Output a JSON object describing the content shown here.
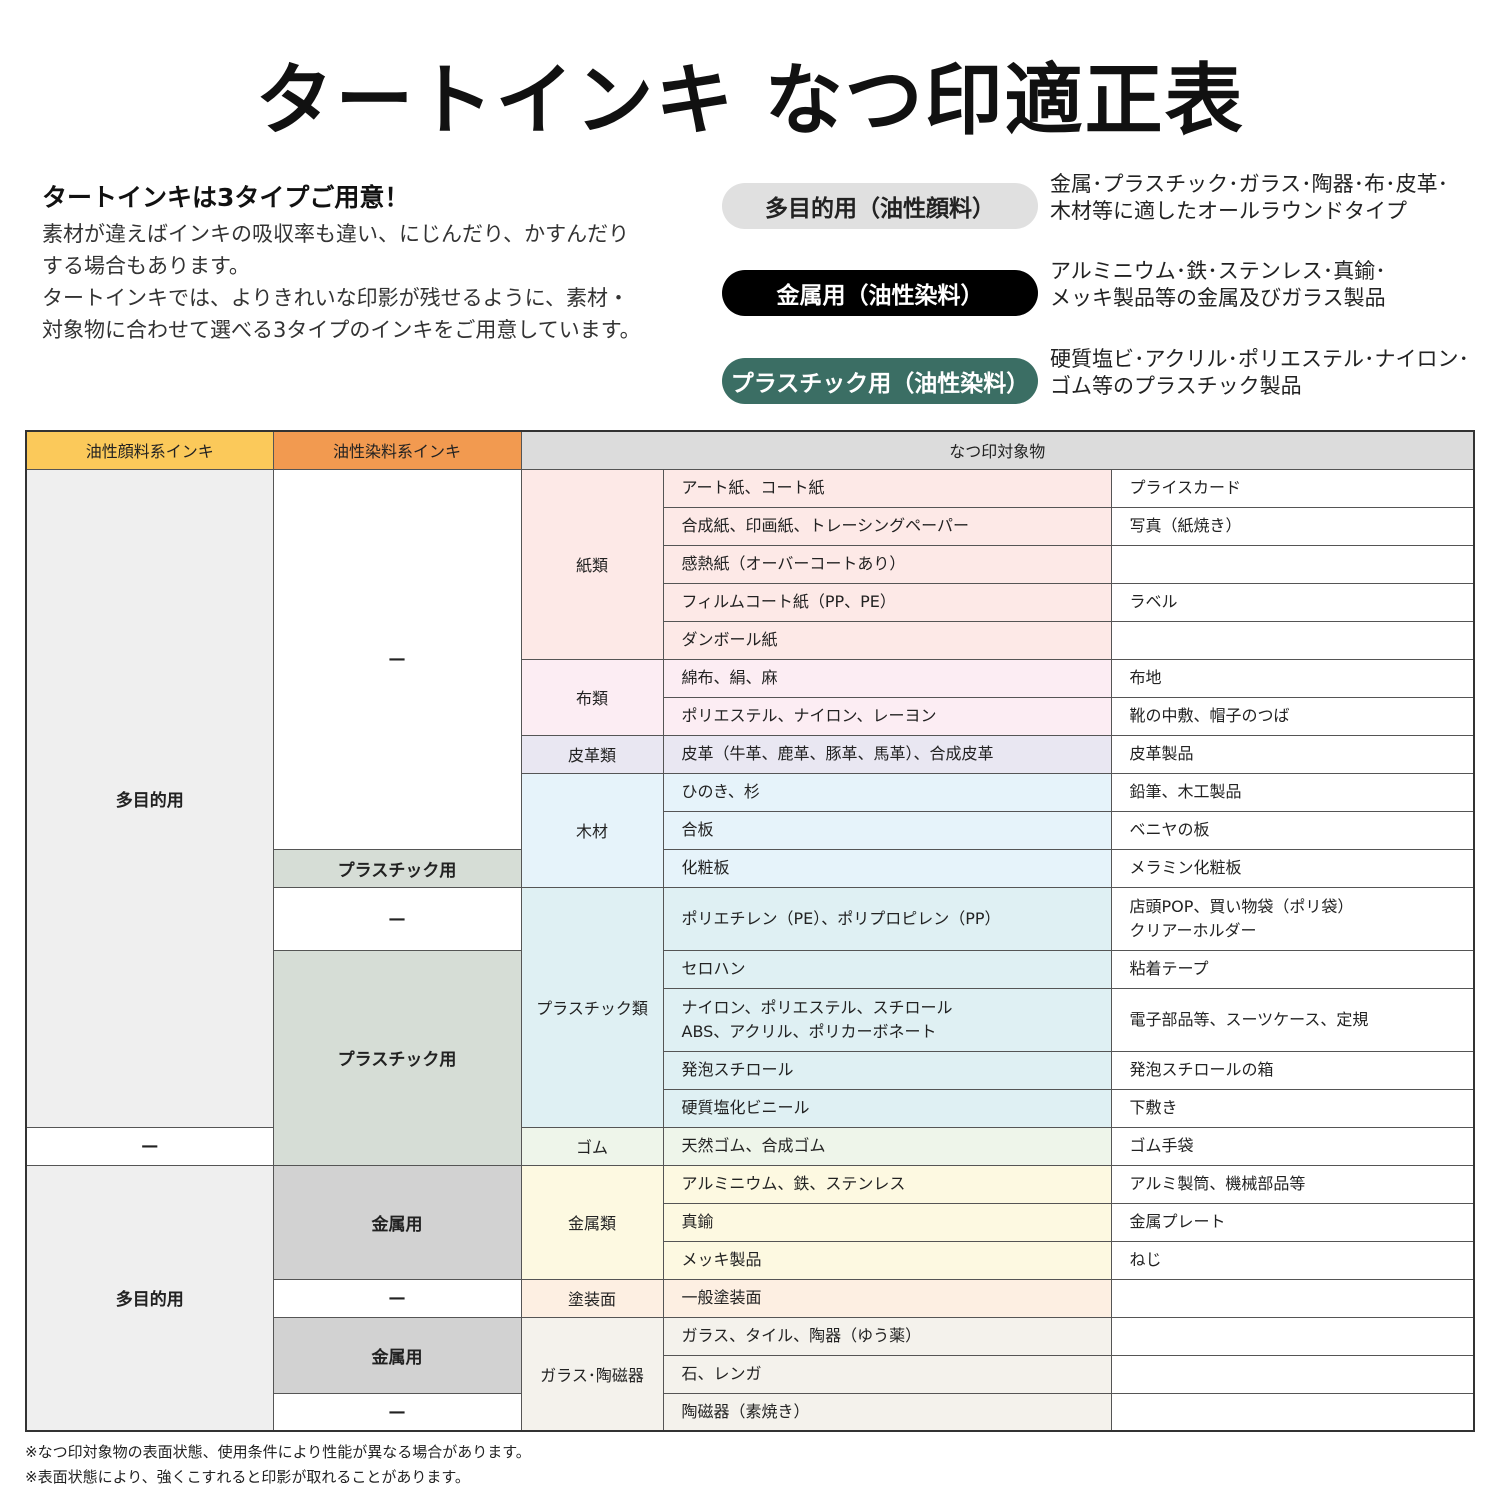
{
  "title": "タートインキ なつ印適正表",
  "intro": {
    "heading": "タートインキは3タイプご用意！",
    "lines": [
      "素材が違えばインキの吸収率も違い、にじんだり、かすんだり",
      "する場合もあります。",
      "タートインキでは、よりきれいな印影が残せるように、素材・",
      "対象物に合わせて選べる3タイプのインキをご用意しています。"
    ]
  },
  "types": [
    {
      "label": "多目的用（油性顔料）",
      "desc": [
        "金属･プラスチック･ガラス･陶器･布･皮革･",
        "木材等に適したオールラウンドタイプ"
      ],
      "bg": "#e0e0e0",
      "fg": "#222222"
    },
    {
      "label": "金属用（油性染料）",
      "desc": [
        "アルミニウム･鉄･ステンレス･真鍮･",
        "メッキ製品等の金属及びガラス製品"
      ],
      "bg": "#000000",
      "fg": "#ffffff"
    },
    {
      "label": "プラスチック用（油性染料）",
      "desc": [
        "硬質塩ビ･アクリル･ポリエステル･ナイロン･",
        "ゴム等のプラスチック製品"
      ],
      "bg": "#3b6e64",
      "fg": "#ffffff"
    }
  ],
  "table": {
    "headers": [
      {
        "label": "油性顔料系インキ",
        "bg": "#fbc95a"
      },
      {
        "label": "油性染料系インキ",
        "bg": "#f29a50"
      },
      {
        "label": "なつ印対象物",
        "bg": "#dcdcdc"
      }
    ],
    "col1": [
      {
        "label": "多目的用",
        "rows": 16,
        "bg": "#efefef"
      },
      {
        "label": "—",
        "rows": 1,
        "bg": "#ffffff"
      },
      {
        "label": "多目的用",
        "rows": 7,
        "bg": "#efefef"
      }
    ],
    "col2": [
      {
        "label": "—",
        "rows": 10,
        "bg": "#ffffff"
      },
      {
        "label": "プラスチック用",
        "rows": 1,
        "bg": "#d6ddd6"
      },
      {
        "label": "—",
        "rows": 1,
        "bg": "#ffffff"
      },
      {
        "label": "プラスチック用",
        "rows": 5,
        "bg": "#d6ddd6"
      },
      {
        "label": "金属用",
        "rows": 3,
        "bg": "#d2d2d2"
      },
      {
        "label": "—",
        "rows": 1,
        "bg": "#ffffff"
      },
      {
        "label": "金属用",
        "rows": 2,
        "bg": "#d2d2d2"
      },
      {
        "label": "—",
        "rows": 1,
        "bg": "#ffffff"
      }
    ],
    "categories": [
      {
        "label": "紙類",
        "bg": "#fde9e7",
        "items": [
          [
            "アート紙、コート紙",
            "プライスカード"
          ],
          [
            "合成紙、印画紙、トレーシングペーパー",
            "写真（紙焼き）"
          ],
          [
            "感熱紙（オーバーコートあり）",
            ""
          ],
          [
            "フィルムコート紙（PP、PE）",
            "ラベル"
          ],
          [
            "ダンボール紙",
            ""
          ]
        ]
      },
      {
        "label": "布類",
        "bg": "#fcedf3",
        "items": [
          [
            "綿布、絹、麻",
            "布地"
          ],
          [
            "ポリエステル、ナイロン、レーヨン",
            "靴の中敷、帽子のつば"
          ]
        ]
      },
      {
        "label": "皮革類",
        "bg": "#e9e7f2",
        "items": [
          [
            "皮革（牛革、鹿革、豚革、馬革）、合成皮革",
            "皮革製品"
          ]
        ]
      },
      {
        "label": "木材",
        "bg": "#e6f3fa",
        "items": [
          [
            "ひのき、杉",
            "鉛筆、木工製品"
          ],
          [
            "合板",
            "ベニヤの板"
          ],
          [
            "化粧板",
            "メラミン化粧板"
          ]
        ]
      },
      {
        "label": "プラスチック類",
        "bg": "#dff0f3",
        "items": [
          [
            "ポリエチレン（PE）、ポリプロピレン（PP）",
            "店頭POP、買い物袋（ポリ袋）\nクリアーホルダー"
          ],
          [
            "セロハン",
            "粘着テープ"
          ],
          [
            "ナイロン、ポリエステル、スチロール\nABS、アクリル、ポリカーボネート",
            "電子部品等、スーツケース、定規"
          ],
          [
            "発泡スチロール",
            "発泡スチロールの箱"
          ],
          [
            "硬質塩化ビニール",
            "下敷き"
          ]
        ]
      },
      {
        "label": "ゴム",
        "bg": "#eef5ea",
        "items": [
          [
            "天然ゴム、合成ゴム",
            "ゴム手袋"
          ]
        ]
      },
      {
        "label": "金属類",
        "bg": "#fdf9e1",
        "items": [
          [
            "アルミニウム、鉄、ステンレス",
            "アルミ製筒、機械部品等"
          ],
          [
            "真鍮",
            "金属プレート"
          ],
          [
            "メッキ製品",
            "ねじ"
          ]
        ]
      },
      {
        "label": "塗装面",
        "bg": "#fdefe2",
        "items": [
          [
            "一般塗装面",
            ""
          ]
        ]
      },
      {
        "label": "ガラス･陶磁器",
        "bg": "#f4f2ec",
        "items": [
          [
            "ガラス、タイル、陶器（ゆう薬）",
            ""
          ],
          [
            "石、レンガ",
            ""
          ],
          [
            "陶磁器（素焼き）",
            ""
          ]
        ]
      }
    ]
  },
  "footnotes": [
    "※なつ印対象物の表面状態、使用条件により性能が異なる場合があります。",
    "※表面状態により、強くこすれると印影が取れることがあります。"
  ]
}
